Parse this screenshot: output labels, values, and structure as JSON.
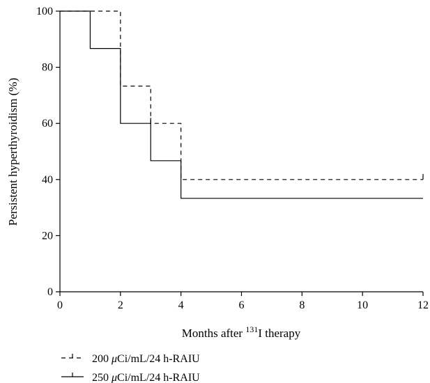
{
  "chart_data": {
    "type": "line",
    "subtype": "step",
    "xlabel": "Months after ¹³¹I therapy",
    "xlabel_parts": {
      "prefix": "Months after ",
      "sup": "131",
      "suffix": "I therapy"
    },
    "ylabel": "Persistent hyperthyroidism (%)",
    "xlim": [
      0,
      12
    ],
    "ylim": [
      0,
      100
    ],
    "xticks": [
      0,
      2,
      4,
      6,
      8,
      10,
      12
    ],
    "yticks": [
      0,
      20,
      40,
      60,
      80,
      100
    ],
    "grid": false,
    "legend_position": "bottom-left",
    "series": [
      {
        "name": "200 μCi/mL/24 h-RAIU",
        "name_parts": {
          "num": "200 ",
          "mu": "μ",
          "rest": "Ci/mL/24 h-RAIU"
        },
        "style": "dashed",
        "x": [
          0,
          2,
          3,
          4,
          12
        ],
        "y": [
          100,
          73.3,
          60,
          40,
          40
        ],
        "censor_marks": [
          [
            3,
            60
          ],
          [
            12,
            40
          ]
        ]
      },
      {
        "name": "250 μCi/mL/24 h-RAIU",
        "name_parts": {
          "num": "250 ",
          "mu": "μ",
          "rest": "Ci/mL/24 h-RAIU"
        },
        "style": "solid",
        "x": [
          0,
          1,
          2,
          3,
          4,
          12
        ],
        "y": [
          100,
          86.7,
          60,
          46.7,
          33.3,
          33.3
        ],
        "censor_marks": []
      }
    ]
  }
}
